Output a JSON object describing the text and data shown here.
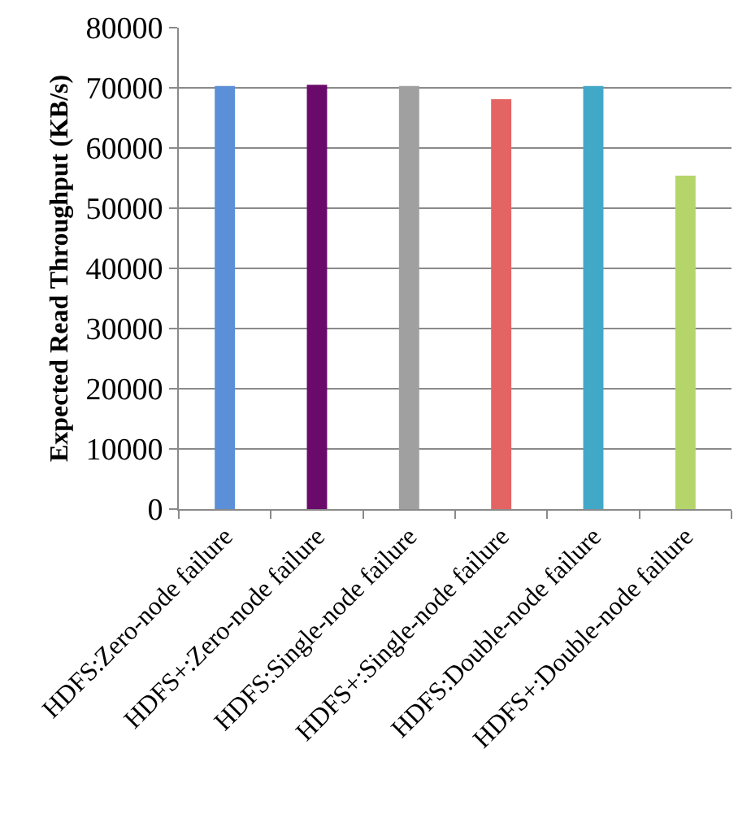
{
  "chart_data": {
    "type": "bar",
    "ylabel": "Expected Read Throughput (KB/s)",
    "categories": [
      "HDFS:Zero-node failure",
      "HDFS+:Zero-node failure",
      "HDFS:Single-node failure",
      "HDFS+:Single-node failure",
      "HDFS:Double-node failure",
      "HDFS+:Double-node failure"
    ],
    "values": [
      70300,
      70500,
      70300,
      68100,
      70300,
      55400
    ],
    "colors": [
      "#5b8fd8",
      "#6a0a6a",
      "#a0a0a0",
      "#e46464",
      "#42a8c8",
      "#b5d56a"
    ],
    "ylim": [
      0,
      80000
    ],
    "yticks": [
      0,
      10000,
      20000,
      30000,
      40000,
      50000,
      60000,
      70000,
      80000
    ],
    "grid": "y"
  }
}
